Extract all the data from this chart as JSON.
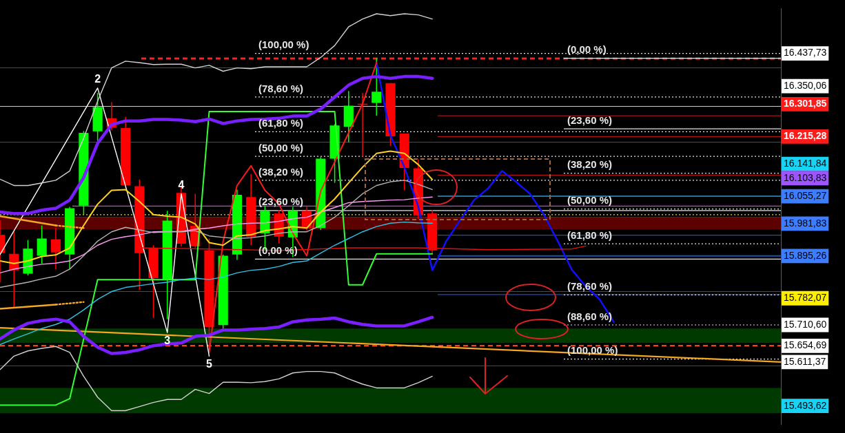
{
  "chart_data": {
    "type": "candlestick",
    "categories": [
      null,
      null,
      null,
      null,
      null,
      null,
      null,
      null,
      null,
      null,
      null,
      null,
      null,
      null,
      null,
      null,
      null,
      null,
      null,
      null,
      null,
      null,
      null,
      null,
      null,
      null,
      null,
      null,
      null,
      null,
      null,
      null,
      null,
      null,
      null,
      null,
      null,
      null,
      null,
      null,
      null,
      null,
      null,
      null,
      null,
      null,
      null,
      null,
      null,
      null,
      null,
      null,
      null,
      null,
      null,
      null,
      null
    ],
    "ohlc": [
      [
        15952,
        15991,
        15825,
        15903
      ],
      [
        15901,
        15960,
        15758,
        15857
      ],
      [
        15848,
        15938,
        15843,
        15915
      ],
      [
        15896,
        15977,
        15875,
        15942
      ],
      [
        15940,
        15970,
        15860,
        15905
      ],
      [
        15899,
        16027,
        15860,
        16023
      ],
      [
        16030,
        16230,
        16006,
        16225
      ],
      [
        16229,
        16332,
        16204,
        16294
      ],
      [
        16264,
        16307,
        16232,
        16239
      ],
      [
        16238,
        16268,
        16076,
        16085
      ],
      [
        16082,
        16100,
        15804,
        15903
      ],
      [
        15917,
        15924,
        15729,
        15836
      ],
      [
        15832,
        16016,
        15726,
        15990
      ],
      [
        16064,
        16080,
        15921,
        15928
      ],
      [
        15976,
        16062,
        15917,
        15921
      ],
      [
        15910,
        15942,
        15644,
        15705
      ],
      [
        15710,
        15899,
        15701,
        15896
      ],
      [
        15899,
        16073,
        15885,
        16059
      ],
      [
        16053,
        16115,
        15924,
        15947
      ],
      [
        15956,
        16030,
        15910,
        16016
      ],
      [
        16009,
        16018,
        15929,
        15947
      ],
      [
        15945,
        16027,
        15892,
        16016
      ],
      [
        16016,
        16027,
        15963,
        15970
      ],
      [
        15970,
        16160,
        15965,
        16156
      ],
      [
        16156,
        16248,
        16091,
        16245
      ],
      [
        16241,
        16337,
        16200,
        16298
      ],
      [
        16303,
        16332,
        16161,
        16300
      ],
      [
        16305,
        16425,
        16271,
        16335
      ],
      [
        16358,
        16358,
        16190,
        16216
      ],
      [
        16223,
        16223,
        16071,
        16131
      ],
      [
        16130,
        16154,
        15995,
        16004
      ],
      [
        16009,
        16018,
        15903,
        15910
      ],
      null,
      null,
      null,
      null,
      null,
      null,
      null,
      null,
      null,
      null,
      null,
      null,
      null,
      null,
      null,
      null,
      null,
      null,
      null,
      null,
      null,
      null,
      null,
      null,
      null
    ],
    "series": [
      {
        "type": "line",
        "color": "#d2d2d2",
        "values": [
          16101,
          16084,
          16084,
          16091,
          16098,
          16123,
          16211,
          16310,
          16399,
          16417,
          16413,
          16408,
          16409,
          16409,
          16399,
          16406,
          16390,
          16399,
          16397,
          16402,
          16402,
          16402,
          16402,
          16427,
          16459,
          16509,
          16530,
          16544,
          16539,
          16544,
          16541,
          16530,
          null,
          null,
          null,
          null,
          null,
          null,
          null,
          null,
          null,
          null,
          null,
          null,
          null,
          null,
          null,
          null,
          null,
          null,
          null,
          null,
          null,
          null,
          null,
          null,
          null
        ]
      },
      {
        "type": "line",
        "color": "#d2d2d2",
        "values": [
          15591,
          15627,
          15641,
          15648,
          15653,
          15637,
          15573,
          15517,
          15481,
          15481,
          15492,
          15503,
          15511,
          15511,
          15538,
          15527,
          15557,
          15557,
          15556,
          15559,
          15566,
          15582,
          15586,
          15586,
          15582,
          15566,
          15552,
          15542,
          15542,
          15542,
          15556,
          15573,
          null,
          null,
          null,
          null,
          null,
          null,
          null,
          null,
          null,
          null,
          null,
          null,
          null,
          null,
          null,
          null,
          null,
          null,
          null,
          null,
          null,
          null,
          null,
          null,
          null
        ]
      },
      {
        "type": "line",
        "color": "#b4b4b4",
        "values": [
          15811,
          15818,
          15825,
          15834,
          15841,
          15860,
          15896,
          15935,
          15960,
          15972,
          15965,
          15958,
          15960,
          15960,
          15963,
          15949,
          15945,
          15942,
          15944,
          15949,
          15956,
          15960,
          15960,
          15977,
          15999,
          16030,
          16062,
          16084,
          16094,
          16098,
          16087,
          16073,
          null,
          null,
          null,
          null,
          null,
          null,
          null,
          null,
          null,
          null,
          null,
          null,
          null,
          null,
          null,
          null,
          null,
          null,
          null,
          null,
          null,
          null,
          null,
          null,
          null
        ]
      },
      {
        "type": "line",
        "color": "#7a1fff",
        "values": [
          16013,
          16009,
          16009,
          16018,
          16023,
          16045,
          16105,
          16197,
          16247,
          16257,
          16257,
          16261,
          16261,
          16259,
          16255,
          16262,
          16250,
          16257,
          16261,
          16262,
          16264,
          16270,
          16270,
          16289,
          16321,
          16353,
          16371,
          16376,
          16371,
          16376,
          16376,
          16371,
          null,
          null,
          null,
          null,
          null,
          null,
          null,
          null,
          null,
          null,
          null,
          null,
          null,
          null,
          null,
          null,
          null,
          null,
          null,
          null,
          null,
          null,
          null,
          null,
          null
        ]
      },
      {
        "type": "line",
        "color": "#7a1fff",
        "values": [
          15673,
          15697,
          15715,
          15722,
          15726,
          15719,
          15680,
          15651,
          15634,
          15637,
          15644,
          15655,
          15660,
          15662,
          15680,
          15683,
          15697,
          15697,
          15699,
          15701,
          15705,
          15719,
          15724,
          15726,
          15729,
          15719,
          15712,
          15708,
          15708,
          15708,
          15719,
          15731,
          null,
          null,
          null,
          null,
          null,
          null,
          null,
          null,
          null,
          null,
          null,
          null,
          null,
          null,
          null,
          null,
          null,
          null,
          null,
          null,
          null,
          null,
          null,
          null,
          null
        ]
      },
      {
        "type": "line",
        "color": "#ffd21f",
        "values": [
          15882,
          15875,
          15882,
          15894,
          15898,
          15917,
          15977,
          16034,
          16071,
          16073,
          16041,
          16006,
          16002,
          15999,
          15981,
          15931,
          15924,
          15949,
          15952,
          15963,
          15968,
          15974,
          15970,
          16013,
          16048,
          16091,
          16133,
          16170,
          16176,
          16170,
          16140,
          16100,
          null,
          null,
          null,
          null,
          null,
          null,
          null,
          null,
          null,
          null,
          null,
          null,
          null,
          null,
          null,
          null,
          null,
          null,
          null,
          null,
          null,
          null,
          null,
          null,
          null
        ]
      },
      {
        "type": "line",
        "color": "#ff9cf5",
        "values": [
          15850,
          15860,
          15867,
          15873,
          15876,
          15882,
          15899,
          15924,
          15940,
          15947,
          15952,
          15960,
          15961,
          15961,
          15967,
          15970,
          15976,
          15981,
          15983,
          15984,
          15988,
          15995,
          15999,
          16013,
          16025,
          16038,
          16041,
          16043,
          16045,
          16046,
          16050,
          16053,
          null,
          null,
          null,
          null,
          null,
          null,
          null,
          null,
          null,
          null,
          null,
          null,
          null,
          null,
          null,
          null,
          null,
          null,
          null,
          null,
          null,
          null,
          null,
          null,
          null
        ]
      },
      {
        "type": "line",
        "color": "#2ec4e6",
        "values": [
          15658,
          15673,
          15687,
          15701,
          15712,
          15726,
          15751,
          15779,
          15800,
          15811,
          15816,
          15821,
          15825,
          15832,
          15836,
          15832,
          15839,
          15850,
          15857,
          15860,
          15867,
          15878,
          15882,
          15903,
          15924,
          15942,
          15960,
          15974,
          15983,
          15986,
          15984,
          15983,
          null,
          null,
          null,
          null,
          null,
          null,
          null,
          null,
          null,
          null,
          null,
          null,
          null,
          null,
          null,
          null,
          null,
          null,
          null,
          null,
          null,
          null,
          null,
          null,
          null
        ]
      },
      {
        "type": "line",
        "color": "#33ff33",
        "values": [
          15496,
          15496,
          15496,
          15496,
          15496,
          15513,
          15673,
          15832,
          15832,
          15832,
          15832,
          15832,
          15832,
          15832,
          15832,
          16282,
          16282,
          16282,
          16282,
          16282,
          16282,
          16282,
          16282,
          16282,
          16282,
          15818,
          15818,
          15901,
          15901,
          15901,
          15901,
          15901,
          null,
          null,
          null,
          null,
          null,
          null,
          null,
          null,
          null,
          null,
          null,
          null,
          null,
          null,
          null,
          null,
          null,
          null,
          null,
          null,
          null,
          null,
          null,
          null,
          null
        ]
      },
      {
        "type": "line",
        "color": "#f5a623",
        "values": [
          15703,
          null,
          null,
          null,
          null,
          null,
          null,
          null,
          null,
          null,
          null,
          null,
          null,
          null,
          null,
          null,
          null,
          null,
          null,
          null,
          null,
          null,
          null,
          null,
          null,
          null,
          null,
          null,
          null,
          null,
          null,
          null,
          null,
          null,
          null,
          null,
          null,
          null,
          null,
          null,
          null,
          null,
          null,
          null,
          null,
          null,
          null,
          null,
          null,
          null,
          null,
          null,
          null,
          null,
          null,
          null,
          15611.37
        ]
      },
      {
        "type": "line",
        "color": "#f5a623",
        "values": [
          16002,
          null,
          null,
          null,
          15977,
          null,
          null,
          null,
          null,
          null,
          null,
          null,
          null,
          null,
          null,
          null,
          null,
          null,
          null,
          null,
          null,
          null,
          null,
          null,
          null,
          null,
          null,
          null,
          null,
          null,
          null,
          null,
          null,
          null,
          null,
          null,
          null,
          null,
          null,
          null,
          null,
          null,
          null,
          null,
          null,
          null,
          null,
          null,
          null,
          null,
          null,
          null,
          null,
          null,
          null,
          null,
          null
        ]
      },
      {
        "type": "line",
        "color": "#f5a623",
        "line_style": "dotted",
        "values": [
          null,
          null,
          null,
          null,
          15977,
          null,
          15970,
          null,
          null,
          null,
          null,
          null,
          null,
          null,
          null,
          null,
          null,
          null,
          null,
          null,
          null,
          null,
          null,
          null,
          null,
          null,
          null,
          null,
          null,
          null,
          null,
          null,
          null,
          null,
          null,
          null,
          null,
          null,
          null,
          null,
          null,
          null,
          null,
          null,
          null,
          null,
          null,
          null,
          null,
          null,
          null,
          null,
          null,
          null,
          null,
          null,
          null
        ]
      },
      {
        "type": "line",
        "color": "#f5a623",
        "values": [
          15754,
          null,
          null,
          null,
          15765,
          null,
          null,
          null,
          null,
          null,
          null,
          null,
          null,
          null,
          null,
          null,
          null,
          null,
          null,
          null,
          null,
          null,
          null,
          null,
          null,
          null,
          null,
          null,
          null,
          null,
          null,
          null,
          null,
          null,
          null,
          null,
          null,
          null,
          null,
          null,
          null,
          null,
          null,
          null,
          null,
          null,
          null,
          null,
          null,
          null,
          null,
          null,
          null,
          null,
          null,
          null,
          null
        ]
      },
      {
        "type": "line",
        "color": "#f5a623",
        "line_style": "dotted",
        "values": [
          null,
          null,
          null,
          null,
          15765,
          null,
          15772,
          null,
          null,
          null,
          null,
          null,
          null,
          null,
          null,
          null,
          null,
          null,
          null,
          null,
          null,
          null,
          null,
          null,
          null,
          null,
          null,
          null,
          null,
          null,
          null,
          null,
          null,
          null,
          null,
          null,
          null,
          null,
          null,
          null,
          null,
          null,
          null,
          null,
          null,
          null,
          null,
          null,
          null,
          null,
          null,
          null,
          null,
          null,
          null,
          null,
          null
        ]
      },
      {
        "type": "line",
        "color": "#e01010",
        "values": [
          null,
          null,
          null,
          null,
          null,
          null,
          null,
          null,
          null,
          null,
          15917,
          null,
          null,
          null,
          null,
          15914,
          null,
          null,
          null,
          null,
          15910,
          null,
          null,
          null,
          null,
          15917,
          null,
          null,
          null,
          null,
          15917,
          null,
          null,
          null,
          null,
          15912,
          null,
          null,
          null,
          null,
          null,
          15914,
          15922,
          null,
          null,
          null,
          null,
          null,
          null,
          null,
          null,
          null,
          null,
          null,
          null,
          null,
          null
        ]
      },
      {
        "type": "line",
        "color": "#ffffff",
        "values": [
          15899,
          null,
          null,
          null,
          null,
          null,
          null,
          16345,
          null,
          null,
          null,
          null,
          15690,
          16062,
          null,
          15627,
          null,
          null,
          null,
          null,
          null,
          null,
          null,
          null,
          null,
          null,
          null,
          null,
          null,
          null,
          null,
          null,
          null,
          null,
          null,
          null,
          null,
          null,
          null,
          null,
          null,
          null,
          null,
          null,
          null,
          null,
          null,
          null,
          null,
          null,
          null,
          null,
          null,
          null,
          null,
          null,
          null
        ]
      },
      {
        "type": "line",
        "color": "#ff1a1a",
        "values": [
          null,
          null,
          null,
          null,
          null,
          null,
          null,
          null,
          null,
          null,
          null,
          null,
          null,
          null,
          null,
          15637,
          15935,
          16084,
          16137,
          16071,
          16035,
          15956,
          15896,
          16069,
          16147,
          16225,
          16303,
          16413,
          null,
          null,
          null,
          null,
          null,
          null,
          null,
          null,
          null,
          null,
          null,
          null,
          null,
          null,
          null,
          null,
          null,
          null,
          null,
          null,
          null,
          null,
          null,
          null,
          null,
          null,
          null,
          null,
          null
        ]
      },
      {
        "type": "line",
        "color": "#1010ff",
        "values": [
          null,
          null,
          null,
          null,
          null,
          null,
          null,
          null,
          null,
          null,
          null,
          null,
          null,
          null,
          null,
          null,
          null,
          null,
          null,
          null,
          null,
          null,
          null,
          null,
          null,
          null,
          null,
          16413,
          16218,
          16133,
          16027,
          15857,
          15935,
          15991,
          16045,
          16076,
          16123,
          16094,
          16062,
          16006,
          15935,
          15859,
          15814,
          15779,
          15719,
          null,
          null,
          null,
          null,
          null,
          null,
          null,
          null,
          null,
          null,
          null,
          null
        ]
      }
    ],
    "ylim": [
      15444,
      16558
    ],
    "yticks": [
      {
        "value": 16437.73,
        "label": "16.437,73"
      },
      {
        "value": 16400,
        "label": null
      },
      {
        "value": 16350.06,
        "label": "16.350,06"
      },
      {
        "value": 16301.85,
        "label": "16.301,85"
      },
      {
        "value": 16215.28,
        "label": "16.215,28"
      },
      {
        "value": 16200,
        "label": null
      },
      {
        "value": 16141.84,
        "label": "16.141,84"
      },
      {
        "value": 16103.83,
        "label": "16.103,83"
      },
      {
        "value": 16055.27,
        "label": "16.055,27"
      },
      {
        "value": 16000,
        "label": null
      },
      {
        "value": 15981.83,
        "label": "15.981,83"
      },
      {
        "value": 15895.26,
        "label": "15.895,26"
      },
      {
        "value": 15800,
        "label": null
      },
      {
        "value": 15782.07,
        "label": "15.782,07"
      },
      {
        "value": 15710.6,
        "label": "15.710,60"
      },
      {
        "value": 15654.69,
        "label": "15.654,69"
      },
      {
        "value": 15611.37,
        "label": "15.611,37"
      },
      {
        "value": 15600,
        "label": null
      },
      {
        "value": 15493.62,
        "label": "15.493,62"
      }
    ],
    "bands": [
      {
        "axis": "y",
        "from": 15967,
        "to": 15999,
        "color": "#5c0000"
      },
      {
        "axis": "y",
        "from": 15662,
        "to": 15701,
        "color": "#003a00"
      },
      {
        "axis": "y",
        "from": 15474,
        "to": 15542,
        "color": "#003a00"
      }
    ],
    "ref_lines": [
      {
        "axis": "y",
        "value": 16424,
        "color": "#ff2020",
        "line_style": "dashed"
      },
      {
        "axis": "y",
        "value": 16296,
        "color": "#cfcfcf",
        "line_style": "solid"
      },
      {
        "axis": "y",
        "value": 16271,
        "color": "#b01010",
        "line_style": "solid"
      },
      {
        "axis": "y",
        "value": 16215.28,
        "color": "#b01010",
        "line_style": "solid"
      },
      {
        "axis": "y",
        "value": 16112,
        "color": "#b01010",
        "line_style": "solid"
      },
      {
        "axis": "y",
        "value": 16055.27,
        "color": "#3399cc",
        "line_style": "solid"
      },
      {
        "axis": "y",
        "value": 16029,
        "color": "#d040d0",
        "line_style": "solid"
      },
      {
        "axis": "y",
        "value": 16006,
        "color": "#ffd700",
        "line_style": "dotted"
      },
      {
        "axis": "y",
        "value": 15951,
        "color": "#1f4fb0",
        "line_style": "solid"
      },
      {
        "axis": "y",
        "value": 15895.26,
        "color": "#1f4fb0",
        "line_style": "solid"
      },
      {
        "axis": "y",
        "value": 15792,
        "color": "#1f4fb0",
        "line_style": "solid"
      },
      {
        "axis": "y",
        "value": 15654.69,
        "color": "#ff5a1f",
        "line_style": "dashed"
      },
      {
        "axis": "y",
        "value": 16437.73,
        "color": "#e6e6e6",
        "line_style": "dotted"
      },
      {
        "axis": "y",
        "value": 16321,
        "color": "#e6e6e6",
        "line_style": "dotted"
      },
      {
        "axis": "y",
        "value": 16228,
        "color": "#e6e6e6",
        "line_style": "dotted"
      },
      {
        "axis": "y",
        "value": 16162,
        "color": "#e6e6e6",
        "line_style": "dotted"
      },
      {
        "axis": "y",
        "value": 16098,
        "color": "#e6e6e6",
        "line_style": "dotted"
      },
      {
        "axis": "y",
        "value": 16017,
        "color": "#e6e6e6",
        "line_style": "solid"
      },
      {
        "axis": "y",
        "value": 15887,
        "color": "#e6e6e6",
        "line_style": "solid"
      },
      {
        "axis": "y",
        "value": 16425,
        "color": "#e6e6e6",
        "line_style": "solid"
      },
      {
        "axis": "y",
        "value": 16236,
        "color": "#e6e6e6",
        "line_style": "solid"
      },
      {
        "axis": "y",
        "value": 16117,
        "color": "#e6e6e6",
        "line_style": "dotted"
      },
      {
        "axis": "y",
        "value": 16021,
        "color": "#e6e6e6",
        "line_style": "dotted"
      },
      {
        "axis": "y",
        "value": 15928,
        "color": "#e6e6e6",
        "line_style": "dotted"
      },
      {
        "axis": "y",
        "value": 15791,
        "color": "#e6e6e6",
        "line_style": "dotted"
      },
      {
        "axis": "y",
        "value": 15710.6,
        "color": "#e6e6e6",
        "line_style": "dotted"
      },
      {
        "axis": "y",
        "value": 15619,
        "color": "#e6e6e6",
        "line_style": "dotted"
      }
    ],
    "annotations": [
      {
        "text": "2",
        "y": 16345
      },
      {
        "text": "3",
        "y": 15690
      },
      {
        "text": "4",
        "y": 16062
      },
      {
        "text": "5",
        "y": 15627
      },
      {
        "text": "(100,00 %)",
        "y": 16437.73
      },
      {
        "text": "(78,60 %)",
        "y": 16321
      },
      {
        "text": "(61,80 %)",
        "y": 16228
      },
      {
        "text": "(50,00 %)",
        "y": 16162
      },
      {
        "text": "(38,20 %)",
        "y": 16098
      },
      {
        "text": "(23,60 %)",
        "y": 16017
      },
      {
        "text": "(0,00 %)",
        "y": 15887
      },
      {
        "text": "(0,00 %)",
        "y": 16425
      },
      {
        "text": "(23,60 %)",
        "y": 16236
      },
      {
        "text": "(38,20 %)",
        "y": 16117
      },
      {
        "text": "(50,00 %)",
        "y": 16021
      },
      {
        "text": "(61,80 %)",
        "y": 15928
      },
      {
        "text": "(78,60 %)",
        "y": 15791
      },
      {
        "text": "(88,60 %)",
        "y": 15710.6
      },
      {
        "text": "(100,00 %)",
        "y": 15619
      }
    ],
    "grid": "y"
  }
}
